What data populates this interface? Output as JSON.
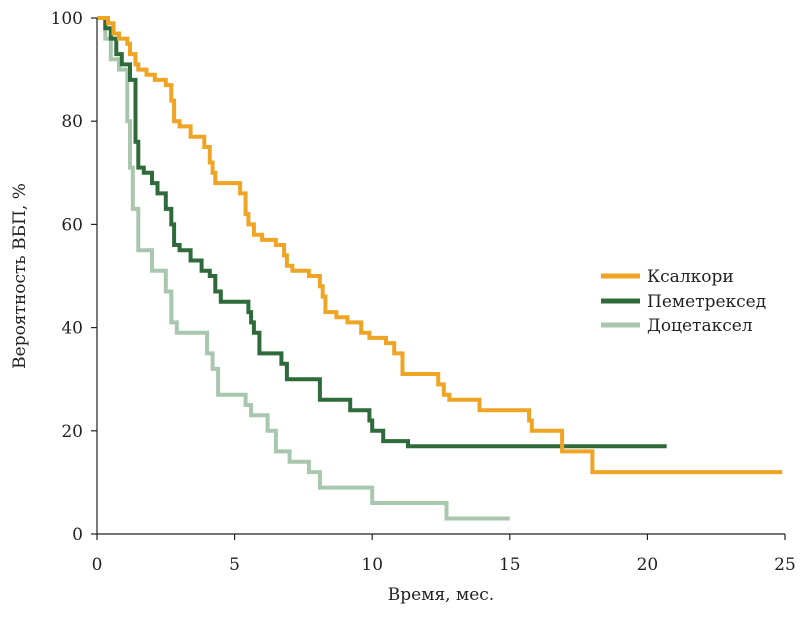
{
  "chart_data": {
    "type": "line",
    "step": true,
    "title": "",
    "xlabel": "Время, мес.",
    "ylabel": "Вероятность ВБП, %",
    "xlim": [
      0,
      25
    ],
    "ylim": [
      0,
      100
    ],
    "xticks": [
      0,
      5,
      10,
      15,
      20,
      25
    ],
    "yticks": [
      0,
      20,
      40,
      60,
      80,
      100
    ],
    "grid": false,
    "legend_position": "right",
    "series": [
      {
        "name": "Ксалкори",
        "color": "#F0A424",
        "points": [
          [
            0,
            100
          ],
          [
            0.4,
            100
          ],
          [
            0.4,
            99
          ],
          [
            0.6,
            99
          ],
          [
            0.6,
            97
          ],
          [
            0.8,
            97
          ],
          [
            0.8,
            96
          ],
          [
            1.1,
            96
          ],
          [
            1.1,
            95
          ],
          [
            1.2,
            95
          ],
          [
            1.2,
            93
          ],
          [
            1.4,
            93
          ],
          [
            1.4,
            91
          ],
          [
            1.5,
            91
          ],
          [
            1.5,
            90
          ],
          [
            1.8,
            90
          ],
          [
            1.8,
            89
          ],
          [
            2.1,
            89
          ],
          [
            2.1,
            88
          ],
          [
            2.5,
            88
          ],
          [
            2.5,
            87
          ],
          [
            2.7,
            87
          ],
          [
            2.7,
            84
          ],
          [
            2.8,
            84
          ],
          [
            2.8,
            80
          ],
          [
            3.0,
            80
          ],
          [
            3.0,
            79
          ],
          [
            3.4,
            79
          ],
          [
            3.4,
            77
          ],
          [
            3.9,
            77
          ],
          [
            3.9,
            75
          ],
          [
            4.1,
            75
          ],
          [
            4.1,
            72
          ],
          [
            4.2,
            72
          ],
          [
            4.2,
            70
          ],
          [
            4.3,
            70
          ],
          [
            4.3,
            68
          ],
          [
            5.2,
            68
          ],
          [
            5.2,
            66
          ],
          [
            5.4,
            66
          ],
          [
            5.4,
            62
          ],
          [
            5.5,
            62
          ],
          [
            5.5,
            60
          ],
          [
            5.7,
            60
          ],
          [
            5.7,
            58
          ],
          [
            6.0,
            58
          ],
          [
            6.0,
            57
          ],
          [
            6.5,
            57
          ],
          [
            6.5,
            56
          ],
          [
            6.8,
            56
          ],
          [
            6.8,
            54
          ],
          [
            6.9,
            54
          ],
          [
            6.9,
            52
          ],
          [
            7.1,
            52
          ],
          [
            7.1,
            51
          ],
          [
            7.7,
            51
          ],
          [
            7.7,
            50
          ],
          [
            8.1,
            50
          ],
          [
            8.1,
            48
          ],
          [
            8.2,
            48
          ],
          [
            8.2,
            46
          ],
          [
            8.3,
            46
          ],
          [
            8.3,
            43
          ],
          [
            8.7,
            43
          ],
          [
            8.7,
            42
          ],
          [
            9.1,
            42
          ],
          [
            9.1,
            41
          ],
          [
            9.6,
            41
          ],
          [
            9.6,
            39
          ],
          [
            9.9,
            39
          ],
          [
            9.9,
            38
          ],
          [
            10.5,
            38
          ],
          [
            10.5,
            37
          ],
          [
            10.8,
            37
          ],
          [
            10.8,
            35
          ],
          [
            11.1,
            35
          ],
          [
            11.1,
            31
          ],
          [
            12.4,
            31
          ],
          [
            12.4,
            29
          ],
          [
            12.6,
            29
          ],
          [
            12.6,
            27
          ],
          [
            12.8,
            27
          ],
          [
            12.8,
            26
          ],
          [
            13.9,
            26
          ],
          [
            13.9,
            24
          ],
          [
            15.7,
            24
          ],
          [
            15.7,
            22
          ],
          [
            15.8,
            22
          ],
          [
            15.8,
            20
          ],
          [
            16.9,
            20
          ],
          [
            16.9,
            16
          ],
          [
            18.0,
            16
          ],
          [
            18.0,
            12
          ],
          [
            24.9,
            12
          ]
        ]
      },
      {
        "name": "Пеметрексед",
        "color": "#2F6A3A",
        "points": [
          [
            0,
            100
          ],
          [
            0.3,
            100
          ],
          [
            0.3,
            98
          ],
          [
            0.5,
            98
          ],
          [
            0.5,
            96
          ],
          [
            0.7,
            96
          ],
          [
            0.7,
            93
          ],
          [
            0.9,
            93
          ],
          [
            0.9,
            91
          ],
          [
            1.2,
            91
          ],
          [
            1.2,
            88
          ],
          [
            1.4,
            88
          ],
          [
            1.4,
            76
          ],
          [
            1.5,
            76
          ],
          [
            1.5,
            71
          ],
          [
            1.7,
            71
          ],
          [
            1.7,
            70
          ],
          [
            2.0,
            70
          ],
          [
            2.0,
            68
          ],
          [
            2.2,
            68
          ],
          [
            2.2,
            66
          ],
          [
            2.5,
            66
          ],
          [
            2.5,
            63
          ],
          [
            2.7,
            63
          ],
          [
            2.7,
            60
          ],
          [
            2.8,
            60
          ],
          [
            2.8,
            56
          ],
          [
            3.0,
            56
          ],
          [
            3.0,
            55
          ],
          [
            3.4,
            55
          ],
          [
            3.4,
            53
          ],
          [
            3.8,
            53
          ],
          [
            3.8,
            51
          ],
          [
            4.1,
            51
          ],
          [
            4.1,
            50
          ],
          [
            4.3,
            50
          ],
          [
            4.3,
            47
          ],
          [
            4.5,
            47
          ],
          [
            4.5,
            45
          ],
          [
            5.5,
            45
          ],
          [
            5.5,
            43
          ],
          [
            5.6,
            43
          ],
          [
            5.6,
            41
          ],
          [
            5.7,
            41
          ],
          [
            5.7,
            39
          ],
          [
            5.9,
            39
          ],
          [
            5.9,
            35
          ],
          [
            6.7,
            35
          ],
          [
            6.7,
            33
          ],
          [
            6.9,
            33
          ],
          [
            6.9,
            30
          ],
          [
            8.1,
            30
          ],
          [
            8.1,
            26
          ],
          [
            9.2,
            26
          ],
          [
            9.2,
            24
          ],
          [
            9.9,
            24
          ],
          [
            9.9,
            22
          ],
          [
            10.0,
            22
          ],
          [
            10.0,
            20
          ],
          [
            10.4,
            20
          ],
          [
            10.4,
            18
          ],
          [
            11.3,
            18
          ],
          [
            11.3,
            17
          ],
          [
            20.7,
            17
          ]
        ]
      },
      {
        "name": "Доцетаксел",
        "color": "#A9C7AE",
        "points": [
          [
            0,
            100
          ],
          [
            0.3,
            100
          ],
          [
            0.3,
            96
          ],
          [
            0.5,
            96
          ],
          [
            0.5,
            92
          ],
          [
            0.8,
            92
          ],
          [
            0.8,
            90
          ],
          [
            1.1,
            90
          ],
          [
            1.1,
            80
          ],
          [
            1.2,
            80
          ],
          [
            1.2,
            71
          ],
          [
            1.3,
            71
          ],
          [
            1.3,
            63
          ],
          [
            1.5,
            63
          ],
          [
            1.5,
            55
          ],
          [
            2.0,
            55
          ],
          [
            2.0,
            51
          ],
          [
            2.5,
            51
          ],
          [
            2.5,
            47
          ],
          [
            2.7,
            47
          ],
          [
            2.7,
            41
          ],
          [
            2.9,
            41
          ],
          [
            2.9,
            39
          ],
          [
            4.0,
            39
          ],
          [
            4.0,
            35
          ],
          [
            4.2,
            35
          ],
          [
            4.2,
            32
          ],
          [
            4.4,
            32
          ],
          [
            4.4,
            27
          ],
          [
            5.4,
            27
          ],
          [
            5.4,
            25
          ],
          [
            5.6,
            25
          ],
          [
            5.6,
            23
          ],
          [
            6.2,
            23
          ],
          [
            6.2,
            20
          ],
          [
            6.5,
            20
          ],
          [
            6.5,
            16
          ],
          [
            7.0,
            16
          ],
          [
            7.0,
            14
          ],
          [
            7.7,
            14
          ],
          [
            7.7,
            12
          ],
          [
            8.1,
            12
          ],
          [
            8.1,
            9
          ],
          [
            10.0,
            9
          ],
          [
            10.0,
            6
          ],
          [
            12.7,
            6
          ],
          [
            12.7,
            3
          ],
          [
            15.0,
            3
          ]
        ]
      }
    ]
  }
}
